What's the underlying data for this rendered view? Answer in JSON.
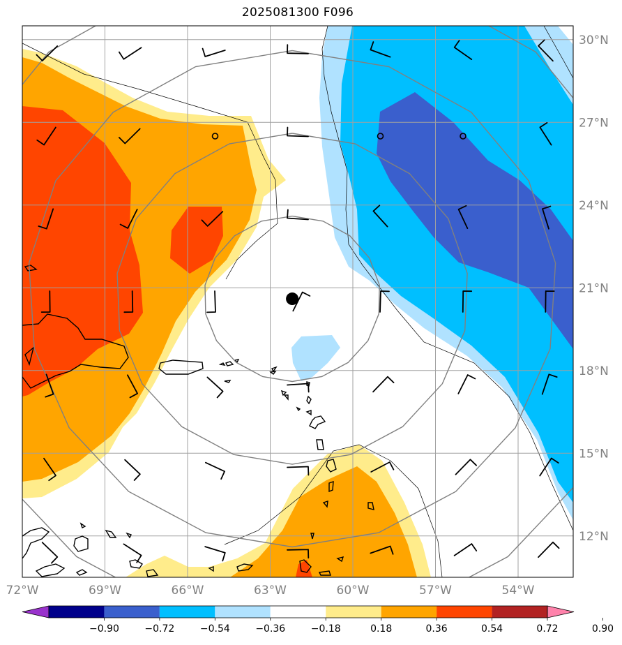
{
  "title": "2025081300 F096",
  "map": {
    "lon_range": [
      -72,
      -52
    ],
    "lat_range": [
      10.5,
      30.5
    ],
    "lon_ticks": [
      {
        "value": -72,
        "label": "72°W"
      },
      {
        "value": -69,
        "label": "69°W"
      },
      {
        "value": -66,
        "label": "66°W"
      },
      {
        "value": -63,
        "label": "63°W"
      },
      {
        "value": -60,
        "label": "60°W"
      },
      {
        "value": -57,
        "label": "57°W"
      },
      {
        "value": -54,
        "label": "54°W"
      }
    ],
    "lat_ticks": [
      {
        "value": 30,
        "label": "30°N"
      },
      {
        "value": 27,
        "label": "27°N"
      },
      {
        "value": 24,
        "label": "24°N"
      },
      {
        "value": 21,
        "label": "21°N"
      },
      {
        "value": 18,
        "label": "18°N"
      },
      {
        "value": 15,
        "label": "15°N"
      },
      {
        "value": 12,
        "label": "12°N"
      }
    ],
    "storm_center": {
      "lon": -62.2,
      "lat": 20.6
    },
    "range_rings_deg": [
      3,
      6,
      9,
      12
    ],
    "grid_color": "#a0a0a0",
    "ring_color": "#808080"
  },
  "colorbar": {
    "levels": [
      "-0.90",
      "-0.72",
      "-0.54",
      "-0.36",
      "-0.18",
      "0.18",
      "0.36",
      "0.54",
      "0.72",
      "0.90"
    ],
    "colors": [
      "#9932cc",
      "#00008b",
      "#3a5fcd",
      "#00bfff",
      "#b0e2ff",
      "#ffffff",
      "#ffec8b",
      "#ffa500",
      "#ff4500",
      "#b22222",
      "#ff82ab"
    ]
  },
  "wind_barbs": {
    "lons": [
      -71,
      -68,
      -65,
      -62,
      -59,
      -56,
      -53
    ],
    "lats": [
      29.5,
      26.5,
      23.5,
      20.5,
      17.5,
      14.5,
      11.5
    ],
    "calm_markers": [
      {
        "lon": -65,
        "lat": 26.5
      },
      {
        "lon": -59,
        "lat": 26.5
      },
      {
        "lon": -56,
        "lat": 26.5
      }
    ]
  }
}
